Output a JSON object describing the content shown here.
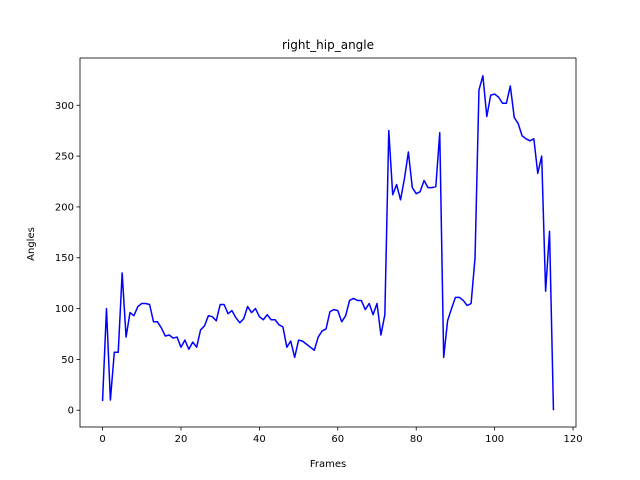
{
  "chart_data": {
    "type": "line",
    "title": "right_hip_angle",
    "xlabel": "Frames",
    "ylabel": "Angles",
    "xlim": [
      -5.75,
      120.75
    ],
    "ylim": [
      -16.5,
      346.5
    ],
    "xticks": [
      0,
      20,
      40,
      60,
      80,
      100,
      120
    ],
    "yticks": [
      0,
      50,
      100,
      150,
      200,
      250,
      300
    ],
    "grid": false,
    "legend": "none",
    "series": [
      {
        "color": "#0000ff",
        "x": [
          0,
          1,
          2,
          3,
          4,
          5,
          6,
          7,
          8,
          9,
          10,
          11,
          12,
          13,
          14,
          15,
          16,
          17,
          18,
          19,
          20,
          21,
          22,
          23,
          24,
          25,
          26,
          27,
          28,
          29,
          30,
          31,
          32,
          33,
          34,
          35,
          36,
          37,
          38,
          39,
          40,
          41,
          42,
          43,
          44,
          45,
          46,
          47,
          48,
          49,
          50,
          51,
          52,
          53,
          54,
          55,
          56,
          57,
          58,
          59,
          60,
          61,
          62,
          63,
          64,
          65,
          66,
          67,
          68,
          69,
          70,
          71,
          72,
          73,
          74,
          75,
          76,
          77,
          78,
          79,
          80,
          81,
          82,
          83,
          84,
          85,
          86,
          87,
          88,
          89,
          90,
          91,
          92,
          93,
          94,
          95,
          96,
          97,
          98,
          99,
          100,
          101,
          102,
          103,
          104,
          105,
          106,
          107,
          108,
          109,
          110,
          111,
          112,
          113,
          114,
          115
        ],
        "values": [
          9,
          100,
          10,
          57,
          57,
          135,
          72,
          96,
          93,
          102,
          105,
          105,
          104,
          87,
          87,
          81,
          73,
          74,
          71,
          72,
          62,
          69,
          60,
          67,
          62,
          79,
          83,
          93,
          92,
          88,
          104,
          104,
          95,
          98,
          91,
          86,
          90,
          102,
          96,
          100,
          92,
          89,
          94,
          89,
          89,
          84,
          82,
          62,
          68,
          52,
          69,
          68,
          65,
          62,
          59,
          72,
          78,
          80,
          97,
          99,
          98,
          87,
          93,
          108,
          110,
          108,
          108,
          99,
          105,
          94,
          105,
          74,
          94,
          275,
          212,
          222,
          207,
          228,
          254,
          219,
          213,
          215,
          226,
          219,
          219,
          220,
          273,
          52,
          88,
          100,
          111,
          111,
          108,
          103,
          105,
          150,
          315,
          329,
          289,
          310,
          311,
          308,
          302,
          302,
          319,
          288,
          282,
          270,
          267,
          265,
          267,
          233,
          250,
          117,
          176,
          0
        ]
      }
    ]
  }
}
